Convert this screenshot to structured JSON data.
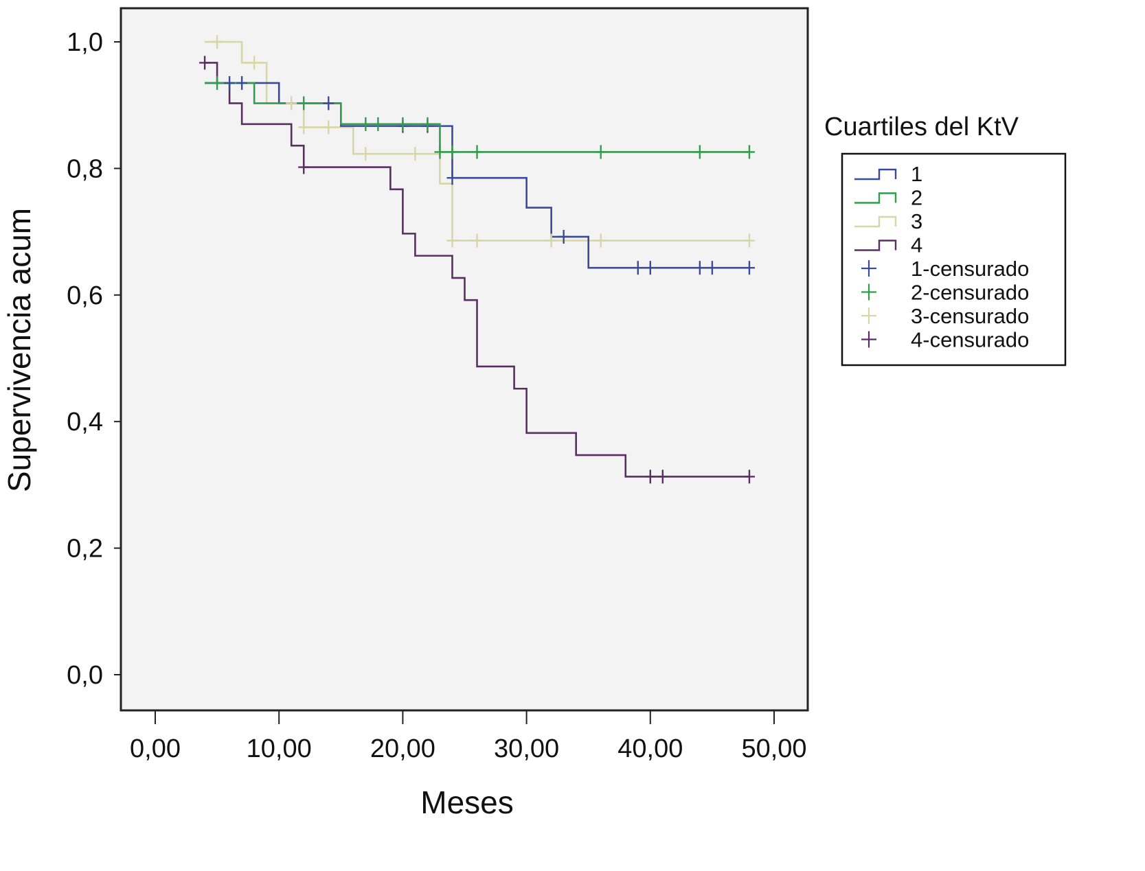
{
  "chart_data": {
    "type": "line",
    "subtype": "kaplan-meier-step",
    "title": "",
    "xlabel": "Meses",
    "ylabel": "Supervivencia acum",
    "xlim": [
      -2.8,
      52.5
    ],
    "ylim": [
      -0.055,
      1.055
    ],
    "x_ticks": [
      0,
      10,
      20,
      30,
      40,
      50
    ],
    "x_tick_labels": [
      "0,00",
      "10,00",
      "20,00",
      "30,00",
      "40,00",
      "50,00"
    ],
    "y_ticks": [
      0,
      0.2,
      0.4,
      0.6,
      0.8,
      1.0
    ],
    "y_tick_labels": [
      "0,0",
      "0,2",
      "0,4",
      "0,6",
      "0,8",
      "1,0"
    ],
    "grid": false,
    "legend": {
      "title": "Cuartiles del KtV",
      "placement": "right",
      "entries": [
        {
          "label": "1",
          "kind": "line",
          "series": 0
        },
        {
          "label": "2",
          "kind": "line",
          "series": 1
        },
        {
          "label": "3",
          "kind": "line",
          "series": 2
        },
        {
          "label": "4",
          "kind": "line",
          "series": 3
        },
        {
          "label": "1-censurado",
          "kind": "censor",
          "series": 0
        },
        {
          "label": "2-censurado",
          "kind": "censor",
          "series": 1
        },
        {
          "label": "3-censurado",
          "kind": "censor",
          "series": 2
        },
        {
          "label": "4-censurado",
          "kind": "censor",
          "series": 3
        }
      ]
    },
    "series": [
      {
        "name": "1",
        "color": "#3a4a9a",
        "steps": [
          [
            4,
            0.935
          ],
          [
            10,
            0.903
          ],
          [
            15,
            0.867
          ],
          [
            24,
            0.785
          ],
          [
            30,
            0.738
          ],
          [
            32,
            0.692
          ],
          [
            35,
            0.643
          ],
          [
            48,
            0.643
          ]
        ],
        "censored": [
          [
            6,
            0.935
          ],
          [
            7,
            0.935
          ],
          [
            14,
            0.903
          ],
          [
            20,
            0.867
          ],
          [
            22,
            0.867
          ],
          [
            24,
            0.785
          ],
          [
            33,
            0.692
          ],
          [
            39,
            0.643
          ],
          [
            40,
            0.643
          ],
          [
            44,
            0.643
          ],
          [
            45,
            0.643
          ],
          [
            48,
            0.643
          ]
        ]
      },
      {
        "name": "2",
        "color": "#2e9e4a",
        "steps": [
          [
            4,
            0.935
          ],
          [
            8,
            0.903
          ],
          [
            15,
            0.87
          ],
          [
            23,
            0.826
          ],
          [
            48,
            0.826
          ]
        ],
        "censored": [
          [
            5,
            0.935
          ],
          [
            12,
            0.903
          ],
          [
            17,
            0.87
          ],
          [
            18,
            0.87
          ],
          [
            20,
            0.87
          ],
          [
            22,
            0.87
          ],
          [
            23,
            0.826
          ],
          [
            24,
            0.826
          ],
          [
            26,
            0.826
          ],
          [
            36,
            0.826
          ],
          [
            44,
            0.826
          ],
          [
            48,
            0.826
          ]
        ]
      },
      {
        "name": "3",
        "color": "#d8d6a4",
        "steps": [
          [
            4,
            1.0
          ],
          [
            7,
            0.967
          ],
          [
            9,
            0.903
          ],
          [
            12,
            0.865
          ],
          [
            16,
            0.823
          ],
          [
            23,
            0.776
          ],
          [
            24,
            0.686
          ],
          [
            48,
            0.686
          ]
        ],
        "censored": [
          [
            5,
            1.0
          ],
          [
            8,
            0.967
          ],
          [
            11,
            0.903
          ],
          [
            12,
            0.865
          ],
          [
            14,
            0.865
          ],
          [
            17,
            0.823
          ],
          [
            21,
            0.823
          ],
          [
            24,
            0.686
          ],
          [
            26,
            0.686
          ],
          [
            32,
            0.686
          ],
          [
            36,
            0.686
          ],
          [
            48,
            0.686
          ]
        ]
      },
      {
        "name": "4",
        "color": "#5a2e62",
        "steps": [
          [
            4,
            0.967
          ],
          [
            5,
            0.935
          ],
          [
            6,
            0.903
          ],
          [
            7,
            0.87
          ],
          [
            11,
            0.836
          ],
          [
            12,
            0.802
          ],
          [
            19,
            0.767
          ],
          [
            20,
            0.697
          ],
          [
            21,
            0.662
          ],
          [
            24,
            0.627
          ],
          [
            25,
            0.592
          ],
          [
            26,
            0.487
          ],
          [
            29,
            0.452
          ],
          [
            30,
            0.382
          ],
          [
            34,
            0.347
          ],
          [
            38,
            0.313
          ],
          [
            48,
            0.313
          ]
        ],
        "censored": [
          [
            4,
            0.967
          ],
          [
            12,
            0.802
          ],
          [
            40,
            0.313
          ],
          [
            41,
            0.313
          ],
          [
            48,
            0.313
          ]
        ]
      }
    ]
  },
  "style": {
    "plot_background": "#f3f3f3",
    "axis_color": "#222222"
  }
}
